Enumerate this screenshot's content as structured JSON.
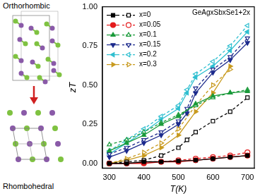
{
  "chart_data": {
    "type": "line",
    "legend_title": "GeAgxSbxSe1+2x",
    "x_label": "T(K)",
    "y_label": "zT",
    "xlim": [
      280,
      720
    ],
    "xticks": [
      300,
      400,
      500,
      600,
      700
    ],
    "ylim": [
      -0.03,
      1.0
    ],
    "yticks": [
      {
        "value": 0,
        "label": "0.00"
      },
      {
        "value": 0.25,
        "label": "0.25"
      },
      {
        "value": 0.5,
        "label": "0.50"
      },
      {
        "value": 0.75,
        "label": "0.75"
      },
      {
        "value": 1.0,
        "label": "1.00"
      }
    ],
    "legend": "upper left",
    "series": [
      {
        "name": "x=0",
        "color": "#000000",
        "marker": "square",
        "line_style": "solid",
        "x": [
          300,
          350,
          400,
          450,
          500,
          550,
          600,
          650,
          700
        ],
        "values": [
          0.0,
          0.0,
          0.01,
          0.01,
          0.015,
          0.02,
          0.03,
          0.04,
          0.05
        ]
      },
      {
        "name": "x=0",
        "color": "#000000",
        "marker": "open square",
        "line_style": "dashed",
        "x": [
          300,
          350,
          400,
          450,
          500,
          525,
          550,
          600,
          650,
          700
        ],
        "values": [
          0.0,
          0.01,
          0.02,
          0.05,
          0.1,
          0.15,
          0.2,
          0.27,
          0.33,
          0.42
        ]
      },
      {
        "name": "x=0.05",
        "color": "#e41a1c",
        "marker": "circle",
        "line_style": "solid",
        "x": [
          300,
          350,
          400,
          450,
          500,
          550,
          600,
          650,
          700
        ],
        "values": [
          0.0,
          0.0,
          0.0,
          0.01,
          0.01,
          0.02,
          0.03,
          0.04,
          0.05
        ]
      },
      {
        "name": "x=0.05",
        "color": "#e41a1c",
        "marker": "open circle",
        "line_style": "dashed",
        "x": [
          300,
          350,
          400,
          450,
          500,
          550,
          600,
          650,
          700
        ],
        "values": [
          0.0,
          0.0,
          0.01,
          0.01,
          0.02,
          0.03,
          0.04,
          0.05,
          0.07
        ]
      },
      {
        "name": "x=0.1",
        "color": "#1a9a3a",
        "marker": "triangle up",
        "line_style": "solid",
        "x": [
          300,
          350,
          400,
          450,
          500,
          550,
          600,
          650,
          700
        ],
        "values": [
          0.08,
          0.13,
          0.18,
          0.25,
          0.3,
          0.38,
          0.43,
          0.45,
          0.46
        ]
      },
      {
        "name": "x=0.1",
        "color": "#1a9a3a",
        "marker": "open triangle up",
        "line_style": "dashed",
        "x": [
          300,
          350,
          400,
          450,
          500,
          550,
          600,
          650,
          700
        ],
        "values": [
          0.12,
          0.15,
          0.2,
          0.26,
          0.31,
          0.37,
          0.42,
          0.45,
          0.47
        ]
      },
      {
        "name": "x=0.15",
        "color": "#1c2a8c",
        "marker": "triangle down",
        "line_style": "solid",
        "x": [
          300,
          350,
          400,
          450,
          500,
          525,
          550,
          600,
          650,
          700
        ],
        "values": [
          0.04,
          0.08,
          0.13,
          0.18,
          0.25,
          0.32,
          0.45,
          0.58,
          0.66,
          0.77
        ]
      },
      {
        "name": "x=0.15",
        "color": "#1c2a8c",
        "marker": "open triangle down",
        "line_style": "dashed",
        "x": [
          300,
          350,
          400,
          450,
          500,
          525,
          550,
          600,
          650,
          700
        ],
        "values": [
          0.06,
          0.1,
          0.15,
          0.2,
          0.27,
          0.35,
          0.48,
          0.6,
          0.68,
          0.8
        ]
      },
      {
        "name": "x=0.2",
        "color": "#2fbfd0",
        "marker": "triangle left",
        "line_style": "solid",
        "x": [
          300,
          350,
          400,
          450,
          500,
          525,
          550,
          600,
          650,
          700
        ],
        "values": [
          0.06,
          0.13,
          0.2,
          0.28,
          0.35,
          0.45,
          0.55,
          0.62,
          0.72,
          0.84
        ]
      },
      {
        "name": "x=0.2",
        "color": "#2fbfd0",
        "marker": "open triangle left",
        "line_style": "dashed",
        "x": [
          300,
          350,
          400,
          450,
          500,
          525,
          550,
          600,
          650,
          700
        ],
        "values": [
          0.08,
          0.15,
          0.22,
          0.3,
          0.37,
          0.47,
          0.57,
          0.65,
          0.75,
          0.88
        ]
      },
      {
        "name": "x=0.3",
        "color": "#c89a1e",
        "marker": "triangle right",
        "line_style": "solid",
        "x": [
          300,
          350,
          400,
          450,
          500,
          550,
          600,
          650
        ],
        "values": [
          0.0,
          0.02,
          0.05,
          0.1,
          0.18,
          0.33,
          0.45,
          0.62
        ]
      },
      {
        "name": "x=0.3",
        "color": "#c89a1e",
        "marker": "open triangle right",
        "line_style": "dashed",
        "x": [
          300,
          350,
          400,
          450,
          500,
          550,
          600,
          650
        ],
        "values": [
          0.0,
          0.03,
          0.07,
          0.13,
          0.22,
          0.37,
          0.5,
          0.6
        ]
      }
    ]
  },
  "diagram": {
    "top_label": "Orthorhombic",
    "bottom_label": "Rhombohedral"
  }
}
